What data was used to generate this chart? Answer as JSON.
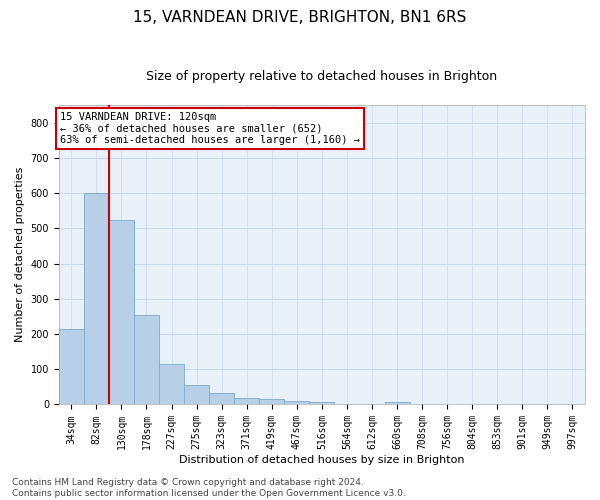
{
  "title": "15, VARNDEAN DRIVE, BRIGHTON, BN1 6RS",
  "subtitle": "Size of property relative to detached houses in Brighton",
  "xlabel": "Distribution of detached houses by size in Brighton",
  "ylabel": "Number of detached properties",
  "bin_labels": [
    "34sqm",
    "82sqm",
    "130sqm",
    "178sqm",
    "227sqm",
    "275sqm",
    "323sqm",
    "371sqm",
    "419sqm",
    "467sqm",
    "516sqm",
    "564sqm",
    "612sqm",
    "660sqm",
    "708sqm",
    "756sqm",
    "804sqm",
    "853sqm",
    "901sqm",
    "949sqm",
    "997sqm"
  ],
  "bin_values": [
    215,
    600,
    525,
    255,
    115,
    55,
    33,
    18,
    15,
    10,
    7,
    0,
    0,
    8,
    0,
    0,
    0,
    0,
    0,
    0,
    0
  ],
  "bar_color": "#b8cfe8",
  "bar_edge_color": "#7aaad0",
  "vline_color": "#cc0000",
  "annotation_text": "15 VARNDEAN DRIVE: 120sqm\n← 36% of detached houses are smaller (652)\n63% of semi-detached houses are larger (1,160) →",
  "annotation_box_color": "white",
  "annotation_box_edge": "#cc0000",
  "ylim": [
    0,
    850
  ],
  "yticks": [
    0,
    100,
    200,
    300,
    400,
    500,
    600,
    700,
    800
  ],
  "grid_color": "#c8d8ec",
  "bg_color": "#e8f0f8",
  "footer": "Contains HM Land Registry data © Crown copyright and database right 2024.\nContains public sector information licensed under the Open Government Licence v3.0.",
  "title_fontsize": 11,
  "subtitle_fontsize": 9,
  "tick_fontsize": 7,
  "ylabel_fontsize": 8,
  "xlabel_fontsize": 8,
  "annotation_fontsize": 7.5,
  "footer_fontsize": 6.5
}
